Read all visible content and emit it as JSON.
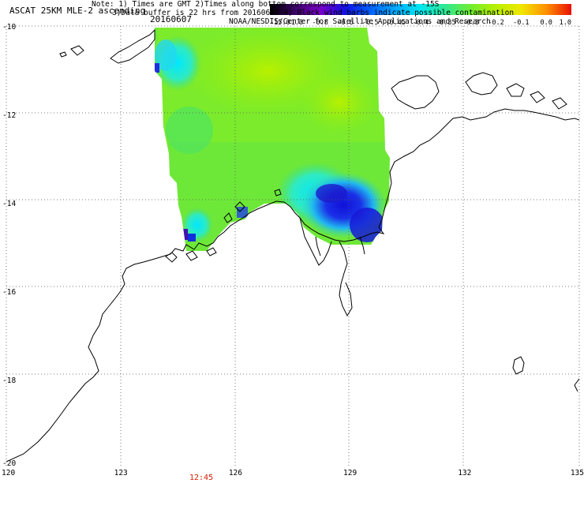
{
  "header": {
    "title": "ASCAT 25KM MLE-2 ascending",
    "date": "20160607"
  },
  "colorbar": {
    "labels": [
      "-15.0",
      "-1.0",
      "-0.8",
      "-0.6",
      "-0.5",
      "-0.45",
      "-0.4",
      "-0.35",
      "-0.3",
      "-0.2",
      "-0.1",
      "0.0",
      "1.0"
    ],
    "colors": [
      "#000000",
      "#3a0066",
      "#7a00c8",
      "#1010e0",
      "#0060ff",
      "#00aaff",
      "#00e8f0",
      "#30e890",
      "#70ee30",
      "#b8f000",
      "#f0e800",
      "#ff9000",
      "#e81000"
    ]
  },
  "axes": {
    "lon_ticks": [
      "120",
      "123",
      "126",
      "129",
      "132",
      "135"
    ],
    "lat_ticks": [
      "-10",
      "-12",
      "-14",
      "-16",
      "-18",
      "-20"
    ],
    "lon_range": [
      120,
      135
    ],
    "lat_range": [
      -20,
      -10
    ]
  },
  "time_marker": {
    "label": "12:45",
    "color": "#d42000"
  },
  "notes": {
    "line1": "Note: 1) Times are GMT 2)Times along bottom correspond to measurement at -15S",
    "line2": "3)Data buffer is 22 hrs from 20160607 4) Black wind barbs indicate possible contamination",
    "line3": "NOAA/NESDIS/Center for Satellite Applications and Research"
  }
}
